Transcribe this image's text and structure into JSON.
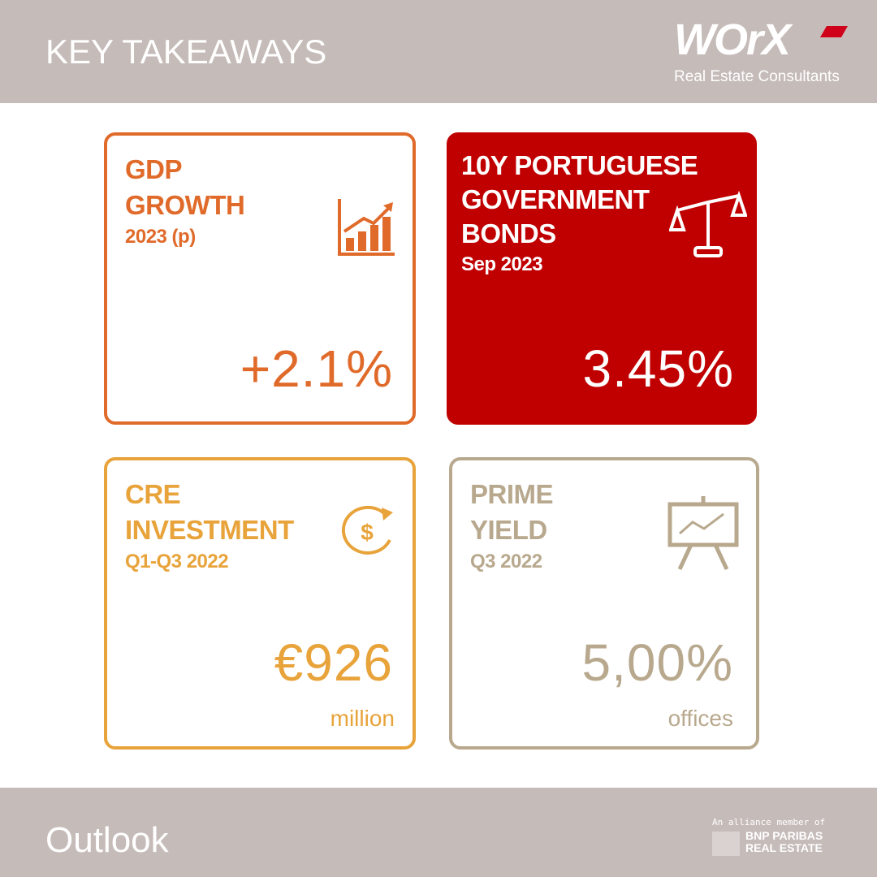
{
  "header": {
    "title": "KEY TAKEAWAYS",
    "logo": "WOrX",
    "logo_subtitle": "Real Estate Consultants"
  },
  "cards": [
    {
      "title": [
        "GDP",
        "GROWTH"
      ],
      "subtitle": "2023 (p)",
      "value": "+2.1%"
    },
    {
      "title": [
        "10Y PORTUGUESE",
        "GOVERNMENT",
        "BONDS"
      ],
      "subtitle": "Sep 2023",
      "value": "3.45%"
    },
    {
      "title": [
        "CRE",
        "INVESTMENT"
      ],
      "subtitle": "Q1-Q3 2022",
      "value": "€926",
      "unit": "million"
    },
    {
      "title": [
        "PRIME",
        "YIELD"
      ],
      "subtitle": "Q3 2022",
      "value": "5,00%",
      "unit": "offices"
    }
  ],
  "footer": {
    "title": "Outlook",
    "alliance": "An alliance member of",
    "partner": [
      "BNP PARIBAS",
      "REAL ESTATE"
    ]
  }
}
